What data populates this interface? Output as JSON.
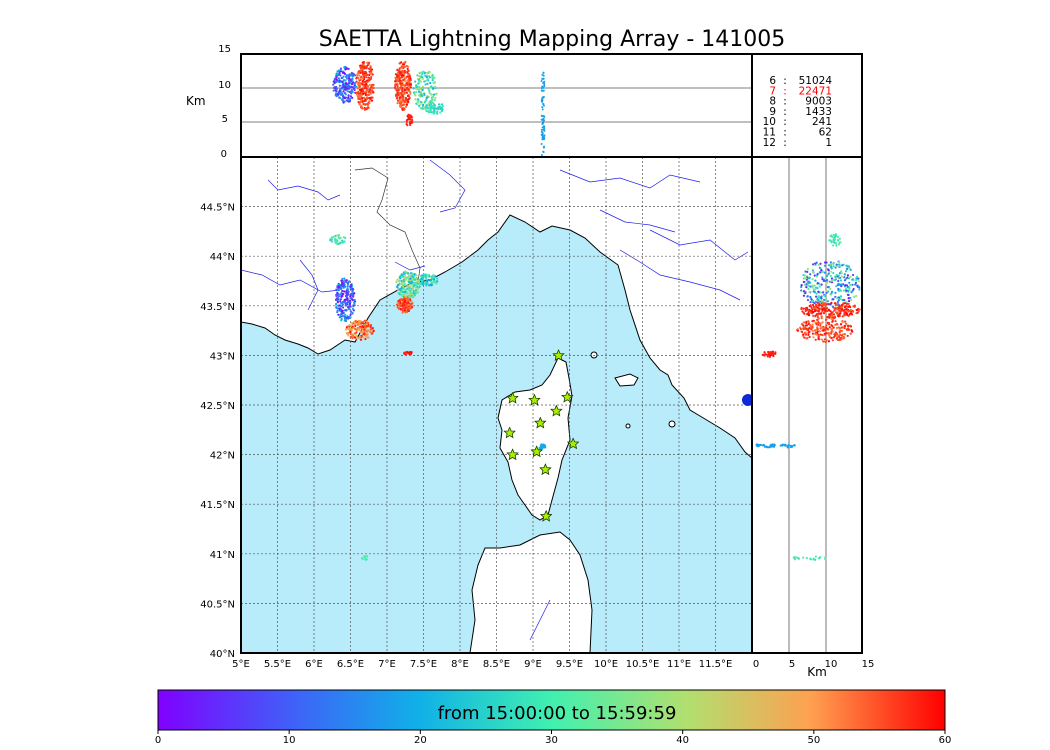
{
  "title": "SAETTA Lightning Mapping Array - 141005",
  "altitude_panel": {
    "ylabel": "Km",
    "yticks": [
      "15",
      "10",
      "5",
      "0"
    ]
  },
  "side_panel": {
    "xlabel": "Km",
    "xticks": [
      "0",
      "5",
      "10",
      "15"
    ]
  },
  "map": {
    "lon_ticks": [
      "5°E",
      "5.5°E",
      "6°E",
      "6.5°E",
      "7°E",
      "7.5°E",
      "8°E",
      "8.5°E",
      "9°E",
      "9.5°E",
      "10°E",
      "10.5°E",
      "11°E",
      "11.5°E"
    ],
    "lat_ticks": [
      "44.5°N",
      "44°N",
      "43.5°N",
      "43°N",
      "42.5°N",
      "42°N",
      "41.5°N",
      "41°N",
      "40.5°N",
      "40°N"
    ],
    "lon_range": [
      5,
      12
    ],
    "lat_range": [
      40,
      45
    ],
    "colors": {
      "sea": "#b8ecfb",
      "land": "#ffffff",
      "coast": "#000000",
      "river": "#1e1ef0",
      "grid": "#555555"
    }
  },
  "station_counts": [
    {
      "stations": "6",
      "sep": ":",
      "count": "51024",
      "color": "#000000"
    },
    {
      "stations": "7",
      "sep": ":",
      "count": "22471",
      "color": "#ff0000"
    },
    {
      "stations": "8",
      "sep": ":",
      "count": "9003",
      "color": "#000000"
    },
    {
      "stations": "9",
      "sep": ":",
      "count": "1433",
      "color": "#000000"
    },
    {
      "stations": "10",
      "sep": ":",
      "count": "241",
      "color": "#000000"
    },
    {
      "stations": "11",
      "sep": ":",
      "count": "62",
      "color": "#000000"
    },
    {
      "stations": "12",
      "sep": ":",
      "count": "1",
      "color": "#000000"
    }
  ],
  "colorbar": {
    "label": "from 15:00:00 to 15:59:59",
    "ticks": [
      "0",
      "10",
      "20",
      "30",
      "40",
      "50",
      "60"
    ],
    "range": [
      0,
      60
    ],
    "colormap": "rainbow"
  },
  "stations_icon": "star-icon",
  "station_locations": [
    [
      9.35,
      43.0
    ],
    [
      8.72,
      42.57
    ],
    [
      9.02,
      42.55
    ],
    [
      9.47,
      42.58
    ],
    [
      9.32,
      42.44
    ],
    [
      9.1,
      42.32
    ],
    [
      8.68,
      42.22
    ],
    [
      9.55,
      42.11
    ],
    [
      8.72,
      42.0
    ],
    [
      9.05,
      42.03
    ],
    [
      9.17,
      41.85
    ],
    [
      9.18,
      41.38
    ]
  ]
}
